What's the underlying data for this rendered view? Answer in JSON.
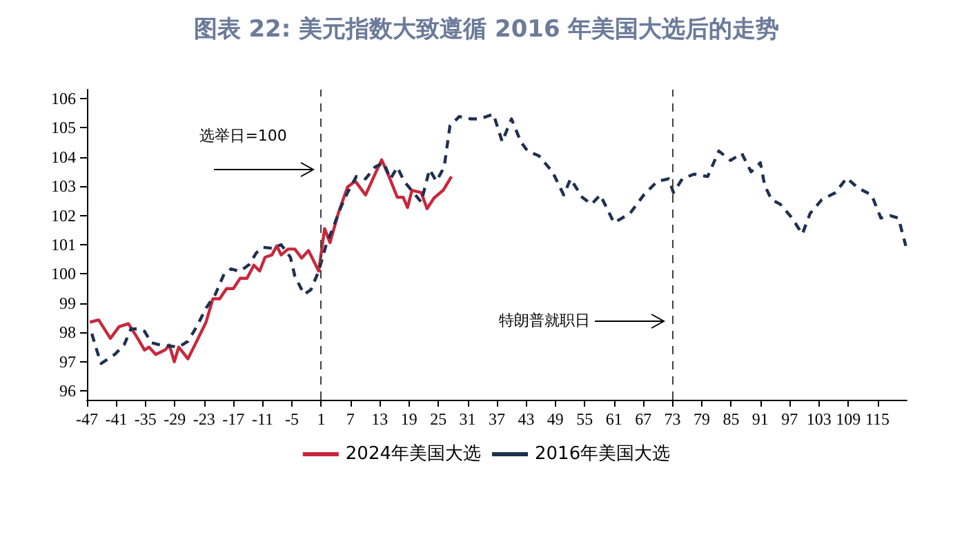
{
  "chart_data": {
    "type": "line",
    "title": "图表 22: 美元指数大致遵循 2016 年美国大选后的走势",
    "xlim": [
      -47,
      121
    ],
    "xticks": [
      -47,
      -41,
      -35,
      -29,
      -23,
      -17,
      -11,
      -5,
      1,
      7,
      13,
      19,
      25,
      31,
      37,
      43,
      49,
      55,
      61,
      67,
      73,
      79,
      85,
      91,
      97,
      103,
      109,
      115
    ],
    "ylim": [
      95.7,
      106.3
    ],
    "yticks": [
      96,
      97,
      98,
      99,
      100,
      101,
      102,
      103,
      104,
      105,
      106
    ],
    "grid": false,
    "legend": "bottom",
    "marker": "none",
    "ref_lines": [
      {
        "axis": "x",
        "value": 1,
        "label": "选举日=100",
        "color": "#404040",
        "line_style": "dashed"
      },
      {
        "axis": "x",
        "value": 73,
        "label": "特朗普就职日",
        "color": "#404040",
        "line_style": "dashed"
      }
    ],
    "series": [
      {
        "name": "2024年美国大选",
        "color": "#c8283c",
        "line_style": "solid",
        "x": [
          -46.4,
          -44.6,
          -42.2,
          -40.4,
          -38.5,
          -36.6,
          -35.2,
          -34.3,
          -32.9,
          -31.0,
          -30.1,
          -29.1,
          -28.2,
          -26.3,
          -24.5,
          -22.6,
          -21.2,
          -19.8,
          -18.4,
          -17.0,
          -15.6,
          -14.2,
          -12.8,
          -11.6,
          -10.5,
          -9.1,
          -8.1,
          -7.2,
          -5.8,
          -4.4,
          -3.0,
          -1.6,
          0.5,
          1.7,
          2.8,
          4.5,
          6.4,
          8.0,
          10.1,
          12.0,
          13.4,
          14.9,
          16.6,
          17.8,
          18.7,
          19.6,
          21.5,
          22.7,
          24.1,
          26.0,
          27.7
        ],
        "values": [
          98.35,
          98.43,
          97.8,
          98.2,
          98.3,
          97.8,
          97.4,
          97.5,
          97.25,
          97.4,
          97.57,
          97.0,
          97.5,
          97.1,
          97.7,
          98.35,
          99.15,
          99.15,
          99.5,
          99.5,
          99.85,
          99.85,
          100.3,
          100.1,
          100.57,
          100.65,
          100.96,
          100.65,
          100.85,
          100.85,
          100.54,
          100.8,
          100.1,
          101.55,
          101.07,
          102.07,
          102.97,
          103.17,
          102.7,
          103.4,
          103.9,
          103.33,
          102.62,
          102.62,
          102.27,
          102.86,
          102.78,
          102.23,
          102.59,
          102.86,
          103.33
        ]
      },
      {
        "name": "2016年美国大选",
        "color": "#1f3050",
        "line_style": "dashed",
        "x": [
          -46.0,
          -45.0,
          -44.1,
          -41.3,
          -39.4,
          -38.0,
          -36.6,
          -35.2,
          -33.8,
          -31.9,
          -30.1,
          -28.2,
          -26.3,
          -24.5,
          -22.6,
          -20.7,
          -18.9,
          -17.5,
          -15.6,
          -13.7,
          -12.3,
          -10.9,
          -9.1,
          -7.2,
          -5.3,
          -4.4,
          -2.5,
          -1.1,
          0.5,
          2.1,
          3.5,
          4.9,
          6.4,
          8.2,
          10.1,
          12.0,
          13.8,
          15.2,
          16.6,
          18.0,
          19.9,
          21.5,
          23.2,
          24.6,
          26.2,
          27.4,
          29.3,
          31.6,
          33.5,
          36.3,
          38.1,
          40.0,
          41.9,
          43.3,
          45.6,
          48.4,
          50.7,
          52.1,
          54.5,
          56.4,
          58.2,
          61.0,
          64.3,
          67.1,
          69.9,
          72.2,
          73.2,
          75.0,
          77.4,
          80.2,
          82.5,
          84.9,
          87.2,
          89.1,
          91.0,
          91.9,
          93.3,
          95.1,
          97.5,
          99.6,
          101.2,
          103.6,
          106.4,
          108.7,
          111.0,
          113.8,
          115.7,
          117.6,
          119.3,
          120.8
        ],
        "values": [
          97.96,
          97.4,
          96.94,
          97.25,
          97.57,
          98.12,
          98.12,
          98.04,
          97.65,
          97.57,
          97.54,
          97.5,
          97.7,
          98.2,
          98.83,
          99.3,
          100.0,
          100.17,
          100.09,
          100.33,
          100.72,
          100.91,
          100.88,
          101.0,
          100.57,
          99.93,
          99.3,
          99.46,
          100.1,
          101.04,
          101.6,
          102.23,
          102.78,
          103.33,
          103.25,
          103.65,
          103.8,
          103.25,
          103.65,
          103.17,
          102.78,
          102.46,
          103.57,
          103.17,
          103.65,
          105.07,
          105.38,
          105.3,
          105.3,
          105.46,
          104.52,
          105.3,
          104.52,
          104.2,
          104.04,
          103.49,
          102.7,
          103.25,
          102.62,
          102.38,
          102.7,
          101.75,
          102.07,
          102.7,
          103.17,
          103.25,
          102.78,
          103.25,
          103.41,
          103.33,
          104.2,
          103.88,
          104.12,
          103.49,
          103.8,
          103.02,
          102.54,
          102.38,
          101.91,
          101.36,
          102.07,
          102.54,
          102.78,
          103.28,
          102.94,
          102.7,
          101.91,
          101.99,
          101.91,
          100.96
        ]
      }
    ]
  }
}
